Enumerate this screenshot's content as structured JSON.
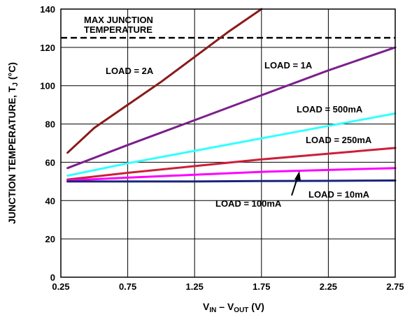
{
  "chart_data": {
    "type": "line",
    "xlabel": {
      "base1": "V",
      "sub1": "IN",
      "sep": " – ",
      "base2": "V",
      "sub2": "OUT",
      "unit": " (V)"
    },
    "ylabel": {
      "base": "JUNCTION TEMPERATURE, T",
      "sub": "J",
      "unit": " (°C)"
    },
    "xlim": [
      0.25,
      2.75
    ],
    "ylim": [
      0,
      140
    ],
    "xticks": [
      "0.25",
      "0.75",
      "1.25",
      "1.75",
      "2.25",
      "2.75"
    ],
    "yticks": [
      "0",
      "20",
      "40",
      "60",
      "80",
      "100",
      "120",
      "140"
    ],
    "grid": true,
    "max_junction": {
      "value": 125,
      "label_line1": "MAX JUNCTION",
      "label_line2": "TEMPERATURE"
    },
    "series": [
      {
        "name": "LOAD = 2A",
        "color": "#8b1a1a",
        "x": [
          0.3,
          0.5,
          0.75,
          1.0,
          1.25,
          1.5,
          1.75
        ],
        "y": [
          65,
          78,
          90,
          102,
          115,
          128,
          140
        ]
      },
      {
        "name": "LOAD = 1A",
        "color": "#7b1f8c",
        "x": [
          0.3,
          0.75,
          1.25,
          1.75,
          2.25,
          2.75
        ],
        "y": [
          57,
          69,
          82,
          95,
          108,
          120
        ]
      },
      {
        "name": "LOAD = 500mA",
        "color": "#33ffff",
        "x": [
          0.3,
          0.75,
          1.25,
          1.75,
          2.25,
          2.75
        ],
        "y": [
          53,
          59.5,
          66,
          72.5,
          79,
          85.5
        ]
      },
      {
        "name": "LOAD = 250mA",
        "color": "#cc1f39",
        "x": [
          0.3,
          0.75,
          1.25,
          1.75,
          2.25,
          2.75
        ],
        "y": [
          51,
          54.5,
          58,
          61.5,
          64.5,
          67.5
        ]
      },
      {
        "name": "LOAD = 100mA",
        "color": "#ff00ff",
        "x": [
          0.3,
          0.75,
          1.25,
          1.75,
          2.25,
          2.75
        ],
        "y": [
          50.5,
          52,
          53.5,
          55,
          56,
          57
        ]
      },
      {
        "name": "LOAD = 10mA",
        "color": "#1a237e",
        "x": [
          0.3,
          0.75,
          1.25,
          1.75,
          2.25,
          2.75
        ],
        "y": [
          50,
          50,
          50,
          50.2,
          50.3,
          50.5
        ]
      }
    ]
  }
}
